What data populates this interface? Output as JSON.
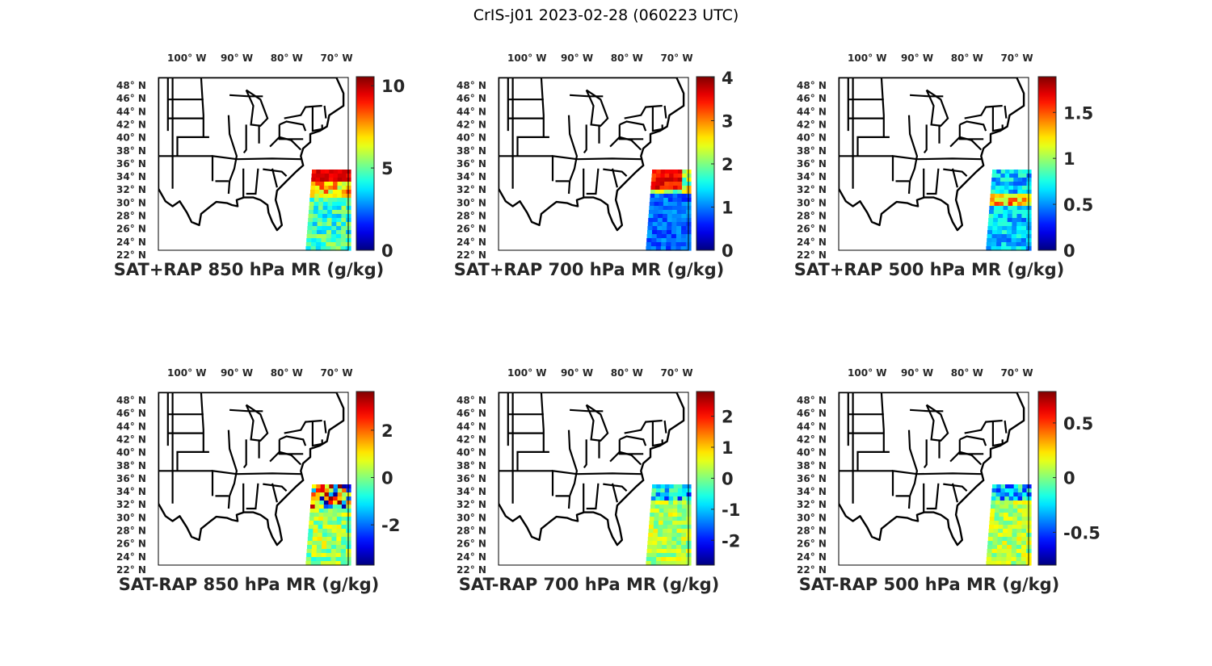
{
  "figure": {
    "title": "CrIS-j01 2023-02-28 (060223 UTC)"
  },
  "lon_ticks": [
    {
      "value": -100,
      "label": "100",
      "hemi": "W"
    },
    {
      "value": -90,
      "label": "90",
      "hemi": "W"
    },
    {
      "value": -80,
      "label": "80",
      "hemi": "W"
    },
    {
      "value": -70,
      "label": "70",
      "hemi": "W"
    }
  ],
  "lat_ticks": [
    {
      "value": 48,
      "label": "48",
      "hemi": "N"
    },
    {
      "value": 46,
      "label": "46",
      "hemi": "N"
    },
    {
      "value": 44,
      "label": "44",
      "hemi": "N"
    },
    {
      "value": 42,
      "label": "42",
      "hemi": "N"
    },
    {
      "value": 40,
      "label": "40",
      "hemi": "N"
    },
    {
      "value": 38,
      "label": "38",
      "hemi": "N"
    },
    {
      "value": 36,
      "label": "36",
      "hemi": "N"
    },
    {
      "value": 34,
      "label": "34",
      "hemi": "N"
    },
    {
      "value": 32,
      "label": "32",
      "hemi": "N"
    },
    {
      "value": 30,
      "label": "30",
      "hemi": "N"
    },
    {
      "value": 28,
      "label": "28",
      "hemi": "N"
    },
    {
      "value": 26,
      "label": "26",
      "hemi": "N"
    },
    {
      "value": 24,
      "label": "24",
      "hemi": "N"
    },
    {
      "value": 22,
      "label": "22",
      "hemi": "N"
    }
  ],
  "panels": [
    {
      "title": "SAT+RAP 850 hPa MR (g/kg)",
      "colorbar": {
        "min": 0,
        "max": 10.5,
        "ticks": [
          0,
          5,
          10
        ],
        "tick_labels": [
          "0",
          "5",
          "10"
        ]
      },
      "swath_style": "warm-top"
    },
    {
      "title": "SAT+RAP 700 hPa MR (g/kg)",
      "colorbar": {
        "min": 0,
        "max": 4,
        "ticks": [
          0,
          1,
          2,
          3,
          4
        ],
        "tick_labels": [
          "0",
          "1",
          "2",
          "3",
          "4"
        ]
      },
      "swath_style": "red-top-blue"
    },
    {
      "title": "SAT+RAP 500 hPa MR (g/kg)",
      "colorbar": {
        "min": 0,
        "max": 1.88,
        "ticks": [
          0,
          0.5,
          1,
          1.5
        ],
        "tick_labels": [
          "0",
          "0.5",
          "1",
          "1.5"
        ]
      },
      "swath_style": "blue-band"
    },
    {
      "title": "SAT-RAP 850 hPa MR (g/kg)",
      "colorbar": {
        "min": -3.7,
        "max": 3.6,
        "ticks": [
          -2,
          0,
          2
        ],
        "tick_labels": [
          "-2",
          "0",
          "2"
        ]
      },
      "swath_style": "diff"
    },
    {
      "title": "SAT-RAP 700 hPa MR (g/kg)",
      "colorbar": {
        "min": -2.8,
        "max": 2.77,
        "ticks": [
          -2,
          -1,
          0,
          1,
          2
        ],
        "tick_labels": [
          "-2",
          "-1",
          "0",
          "1",
          "2"
        ]
      },
      "swath_style": "diff-green"
    },
    {
      "title": "SAT-RAP 500 hPa MR (g/kg)",
      "colorbar": {
        "min": -0.8,
        "max": 0.78,
        "ticks": [
          -0.5,
          0,
          0.5
        ],
        "tick_labels": [
          "-0.5",
          "0",
          "0.5"
        ]
      },
      "swath_style": "diff-green"
    }
  ]
}
